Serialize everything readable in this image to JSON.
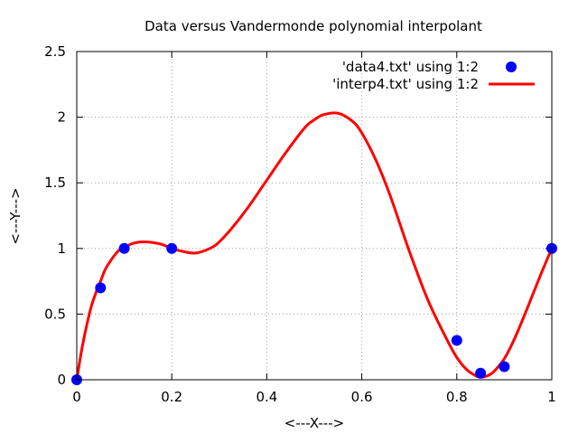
{
  "chart_data": {
    "type": "line",
    "title": "Data versus Vandermonde polynomial interpolant",
    "xlabel": "<---X--->",
    "ylabel": "<---Y--->",
    "xlim": [
      0,
      1
    ],
    "ylim": [
      0,
      2.5
    ],
    "x_ticks": [
      0,
      0.2,
      0.4,
      0.6,
      0.8,
      1
    ],
    "x_tick_labels": [
      "0",
      "0.2",
      "0.4",
      "0.6",
      "0.8",
      "1"
    ],
    "y_ticks": [
      0,
      0.5,
      1,
      1.5,
      2,
      2.5
    ],
    "y_tick_labels": [
      "0",
      "0.5",
      "1",
      "1.5",
      "2",
      "2.5"
    ],
    "grid": true,
    "legend_position": "top-right",
    "series": [
      {
        "name": "'data4.txt' using 1:2",
        "kind": "points",
        "color": "#0000ff",
        "x": [
          0,
          0.05,
          0.1,
          0.2,
          0.8,
          0.85,
          0.9,
          1.0
        ],
        "y": [
          0,
          0.7,
          1.0,
          1.0,
          0.3,
          0.05,
          0.1,
          1.0
        ]
      },
      {
        "name": "'interp4.txt' using 1:2",
        "kind": "line",
        "color": "#ff0000",
        "x": [
          0,
          0.01,
          0.02,
          0.03,
          0.04,
          0.05,
          0.06,
          0.07,
          0.08,
          0.09,
          0.1,
          0.12,
          0.14,
          0.16,
          0.18,
          0.2,
          0.22,
          0.25,
          0.28,
          0.3,
          0.33,
          0.36,
          0.4,
          0.44,
          0.48,
          0.5,
          0.52,
          0.55,
          0.58,
          0.6,
          0.63,
          0.66,
          0.7,
          0.74,
          0.78,
          0.8,
          0.82,
          0.84,
          0.85,
          0.86,
          0.87,
          0.88,
          0.9,
          0.92,
          0.94,
          0.96,
          0.98,
          1.0
        ],
        "y": [
          0,
          0.22,
          0.4,
          0.55,
          0.66,
          0.75,
          0.84,
          0.9,
          0.95,
          0.99,
          1.01,
          1.04,
          1.05,
          1.045,
          1.03,
          1.0,
          0.98,
          0.965,
          1.0,
          1.05,
          1.17,
          1.31,
          1.52,
          1.73,
          1.92,
          1.98,
          2.02,
          2.03,
          1.97,
          1.88,
          1.67,
          1.4,
          0.98,
          0.6,
          0.3,
          0.17,
          0.08,
          0.03,
          0.02,
          0.025,
          0.04,
          0.07,
          0.16,
          0.3,
          0.47,
          0.65,
          0.83,
          1.0
        ]
      }
    ]
  }
}
